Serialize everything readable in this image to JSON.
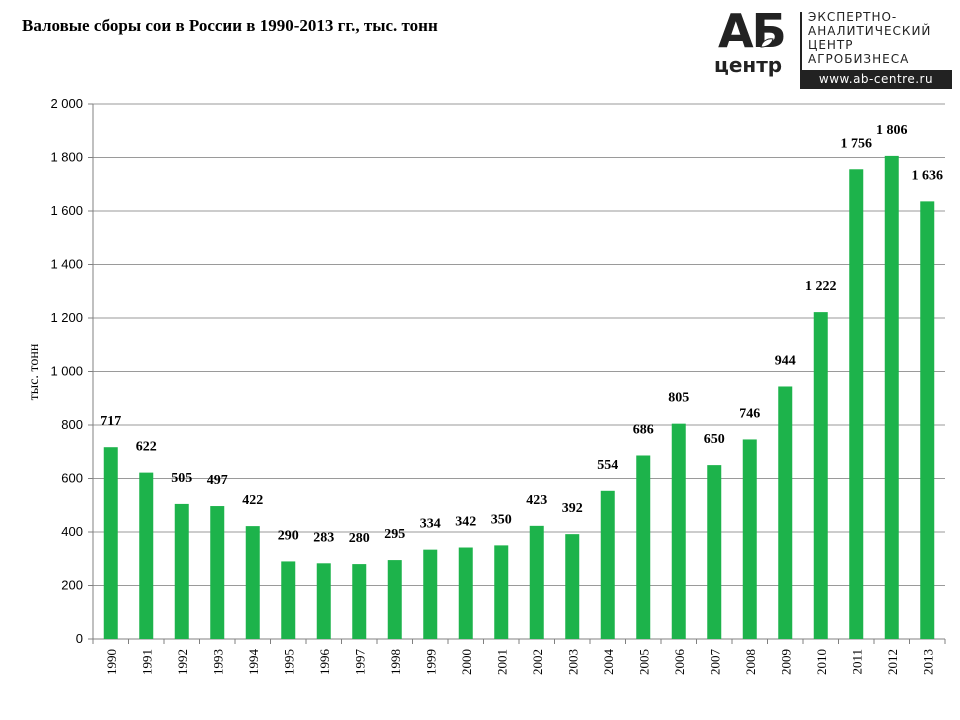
{
  "logo": {
    "ab": "АБ",
    "centr": "центр",
    "lines": [
      "ЭКСПЕРТНО-",
      "АНАЛИТИЧЕСКИЙ",
      "ЦЕНТР",
      "АГРОБИЗНЕСА"
    ],
    "url": "www.ab-centre.ru"
  },
  "colors": {
    "bar": "#1db34b",
    "grid": "#9a9a9a"
  },
  "chart_data": {
    "type": "bar",
    "title": "Валовые сборы сои в России в 1990-2013 гг., тыс. тонн",
    "xlabel": "",
    "ylabel": "тыс. тонн",
    "ylim": [
      0,
      2000
    ],
    "yticks": [
      0,
      200,
      400,
      600,
      800,
      1000,
      1200,
      1400,
      1600,
      1800,
      2000
    ],
    "ytick_labels": [
      "0",
      "200",
      "400",
      "600",
      "800",
      "1 000",
      "1 200",
      "1 400",
      "1 600",
      "1 800",
      "2 000"
    ],
    "grid": true,
    "categories": [
      "1990",
      "1991",
      "1992",
      "1993",
      "1994",
      "1995",
      "1996",
      "1997",
      "1998",
      "1999",
      "2000",
      "2001",
      "2002",
      "2003",
      "2004",
      "2005",
      "2006",
      "2007",
      "2008",
      "2009",
      "2010",
      "2011",
      "2012",
      "2013"
    ],
    "values": [
      717,
      622,
      505,
      497,
      422,
      290,
      283,
      280,
      295,
      334,
      342,
      350,
      423,
      392,
      554,
      686,
      805,
      650,
      746,
      944,
      1222,
      1756,
      1806,
      1636
    ],
    "value_labels": [
      "717",
      "622",
      "505",
      "497",
      "422",
      "290",
      "283",
      "280",
      "295",
      "334",
      "342",
      "350",
      "423",
      "392",
      "554",
      "686",
      "805",
      "650",
      "746",
      "944",
      "1 222",
      "1 756",
      "1 806",
      "1 636"
    ]
  }
}
